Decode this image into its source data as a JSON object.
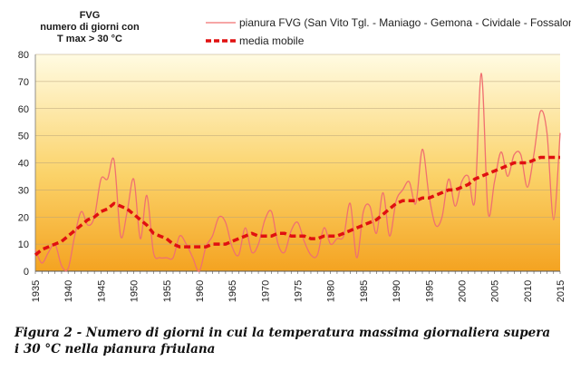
{
  "caption": "Figura 2 - Numero di giorni in cui la temperatura massima giornaliera supera i 30 °C nella pianura friulana",
  "chart_data": {
    "type": "line",
    "title_lines": [
      "FVG",
      "numero di giorni con",
      "T max > 30 °C"
    ],
    "xlim": [
      1935,
      2015
    ],
    "ylim": [
      0,
      80
    ],
    "x_ticks": [
      1935,
      1940,
      1945,
      1950,
      1955,
      1960,
      1965,
      1970,
      1975,
      1980,
      1985,
      1990,
      1995,
      2000,
      2005,
      2010,
      2015
    ],
    "y_ticks": [
      0,
      10,
      20,
      30,
      40,
      50,
      60,
      70,
      80
    ],
    "grid": "horizontal",
    "legend_position": "top-right",
    "x": [
      1935,
      1936,
      1937,
      1938,
      1939,
      1940,
      1941,
      1942,
      1943,
      1944,
      1945,
      1946,
      1947,
      1948,
      1949,
      1950,
      1951,
      1952,
      1953,
      1954,
      1955,
      1956,
      1957,
      1958,
      1959,
      1960,
      1961,
      1962,
      1963,
      1964,
      1965,
      1966,
      1967,
      1968,
      1969,
      1970,
      1971,
      1972,
      1973,
      1974,
      1975,
      1976,
      1977,
      1978,
      1979,
      1980,
      1981,
      1982,
      1983,
      1984,
      1985,
      1986,
      1987,
      1988,
      1989,
      1990,
      1991,
      1992,
      1993,
      1994,
      1995,
      1996,
      1997,
      1998,
      1999,
      2000,
      2001,
      2002,
      2003,
      2004,
      2005,
      2006,
      2007,
      2008,
      2009,
      2010,
      2011,
      2012,
      2013,
      2014,
      2015
    ],
    "series": [
      {
        "name": "pianura FVG (San Vito Tgl. - Maniago - Gemona - Cividale - Fossalon)",
        "color": "#f07070",
        "style": "solid",
        "values": [
          8,
          3,
          7,
          10,
          2,
          1,
          13,
          22,
          17,
          20,
          34,
          34,
          41,
          13,
          22,
          34,
          12,
          28,
          7,
          5,
          5,
          5,
          13,
          10,
          5,
          0,
          9,
          13,
          20,
          18,
          9,
          6,
          16,
          7,
          10,
          19,
          22,
          10,
          7,
          15,
          18,
          11,
          6,
          6,
          16,
          10,
          12,
          13,
          25,
          5,
          22,
          24,
          14,
          29,
          13,
          26,
          30,
          33,
          25,
          45,
          28,
          17,
          20,
          34,
          24,
          33,
          35,
          26,
          73,
          22,
          33,
          44,
          35,
          43,
          43,
          31,
          43,
          59,
          51,
          19,
          51
        ]
      },
      {
        "name": "media mobile",
        "color": "#e01010",
        "style": "dashed",
        "values": [
          6,
          8,
          9,
          10,
          11,
          13,
          15,
          17,
          19,
          20,
          22,
          23,
          25,
          24,
          23,
          21,
          19,
          17,
          14,
          13,
          12,
          10,
          9,
          9,
          9,
          9,
          9,
          10,
          10,
          10,
          11,
          12,
          13,
          14,
          13,
          13,
          13,
          14,
          14,
          13,
          13,
          13,
          12,
          12,
          13,
          13,
          13,
          14,
          15,
          16,
          17,
          18,
          19,
          21,
          23,
          25,
          26,
          26,
          26,
          27,
          27,
          28,
          29,
          30,
          30,
          31,
          32,
          34,
          35,
          36,
          37,
          38,
          39,
          40,
          40,
          40,
          41,
          42,
          42,
          42,
          42
        ]
      }
    ]
  }
}
